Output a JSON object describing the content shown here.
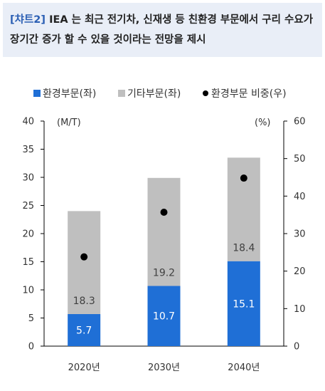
{
  "header": {
    "tag": "[챠트2]",
    "title": "IEA 는 최근 전기차, 신재생 등 친환경 부문에서 구리 수요가 장기간 증가 할 수 있을 것이라는 전망을 제시"
  },
  "chart_data": {
    "type": "bar",
    "stacked": true,
    "categories": [
      "2020년",
      "2030년",
      "2040년"
    ],
    "series": [
      {
        "name": "환경부문(좌)",
        "axis": "left",
        "values": [
          5.7,
          10.7,
          15.1
        ],
        "color": "#1f6fd6",
        "label_color": "#ffffff"
      },
      {
        "name": "기타부문(좌)",
        "axis": "left",
        "values": [
          18.3,
          19.2,
          18.4
        ],
        "color": "#bfbfbf",
        "label_color": "#404040"
      },
      {
        "name": "환경부문 비중(우)",
        "axis": "right",
        "type": "scatter",
        "values": [
          23.8,
          35.7,
          44.8
        ],
        "color": "#000000"
      }
    ],
    "y_left": {
      "label": "(M/T)",
      "min": 0,
      "max": 40,
      "ticks": [
        0,
        5,
        10,
        15,
        20,
        25,
        30,
        35,
        40
      ]
    },
    "y_right": {
      "label": "(%)",
      "min": 0,
      "max": 60,
      "ticks": [
        0,
        10,
        20,
        30,
        40,
        50,
        60
      ]
    },
    "legend": {
      "position": "top"
    },
    "grid": false
  }
}
